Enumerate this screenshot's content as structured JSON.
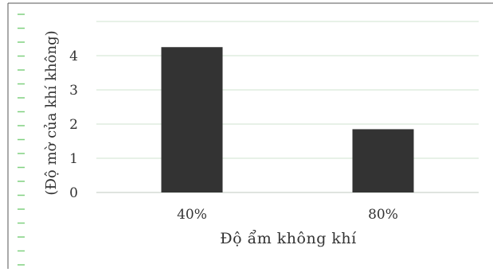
{
  "chart_data": {
    "type": "bar",
    "title": "",
    "xlabel": "Độ ẩm không khí",
    "ylabel": "(Độ mờ của khí không)",
    "categories": [
      "40%",
      "80%"
    ],
    "values": [
      4.25,
      1.85
    ],
    "yticks": [
      0,
      1,
      2,
      3,
      4
    ],
    "ylim": [
      0,
      5
    ],
    "grid": true,
    "bar_color": "#333333",
    "grid_color": "#cfe3cf",
    "border_color": "#555555",
    "left_edge_marks_color": "#7fd07f"
  }
}
